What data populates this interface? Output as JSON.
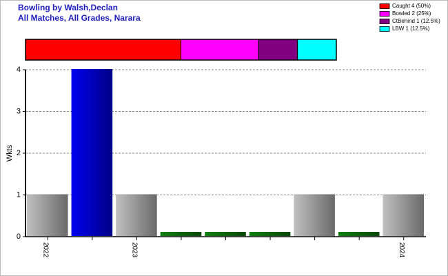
{
  "chart_data": [
    {
      "type": "stacked-bar",
      "series": [
        {
          "name": "Caught 4 (50%)",
          "color": "#ff0000",
          "values": [
            4
          ]
        },
        {
          "name": "Bowled 2 (25%)",
          "color": "#ff00ff",
          "values": [
            2
          ]
        },
        {
          "name": "CtBehind 1 (12.5%)",
          "color": "#800080",
          "values": [
            1
          ]
        },
        {
          "name": "LBW 1 (12.5%)",
          "color": "#00ffff",
          "values": [
            1
          ]
        }
      ]
    },
    {
      "type": "bar",
      "title": "Bowling by Walsh,Declan",
      "subtitle": "All Matches, All Grades, Narara",
      "y_label": "Wkts",
      "categories": [
        "2022",
        null,
        "2023",
        null,
        null,
        null,
        null,
        null,
        "2024"
      ],
      "values": [
        1,
        4,
        1,
        0,
        0,
        0,
        1,
        0,
        1
      ],
      "colors": [
        "#c0c0c0",
        "#0000f0",
        "#c0c0c0",
        "#108010",
        "#108010",
        "#108010",
        "#c0c0c0",
        "#108010",
        "#c0c0c0"
      ],
      "ylim": [
        0,
        4
      ],
      "yticks": [
        0,
        1,
        2,
        3,
        4
      ],
      "grid": true
    }
  ]
}
